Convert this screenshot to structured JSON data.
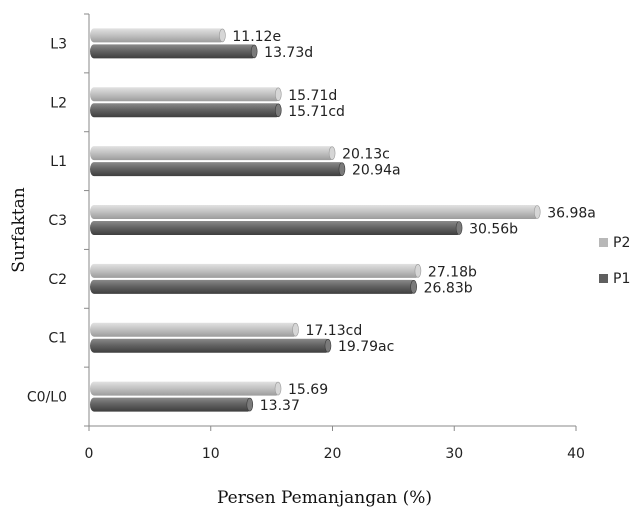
{
  "chart_data": {
    "type": "bar",
    "orientation": "horizontal",
    "xlabel": "Persen Pemanjangan (%)",
    "ylabel": "Surfaktan",
    "xlim": [
      0,
      40
    ],
    "xticks": [
      "0",
      "10",
      "20",
      "30",
      "40"
    ],
    "categories": [
      "L3",
      "L2",
      "L1",
      "C3",
      "C2",
      "C1",
      "C0/L0"
    ],
    "series": [
      {
        "name": "P2",
        "color": "#b8b8b8",
        "values": [
          11.12,
          15.71,
          20.13,
          36.98,
          27.18,
          17.13,
          15.69
        ],
        "labels": [
          "11.12e",
          "15.71d",
          "20.13c",
          "36.98a",
          "27.18b",
          "17.13cd",
          "15.69"
        ]
      },
      {
        "name": "P1",
        "color": "#5f5f5f",
        "values": [
          13.73,
          15.71,
          20.94,
          30.56,
          26.83,
          19.79,
          13.37
        ],
        "labels": [
          "13.73d",
          "15.71cd",
          "20.94a",
          "30.56b",
          "26.83b",
          "19.79ac",
          "13.37"
        ]
      }
    ],
    "legend": [
      "P2",
      "P1"
    ],
    "legend_position": "right",
    "grid": false
  }
}
